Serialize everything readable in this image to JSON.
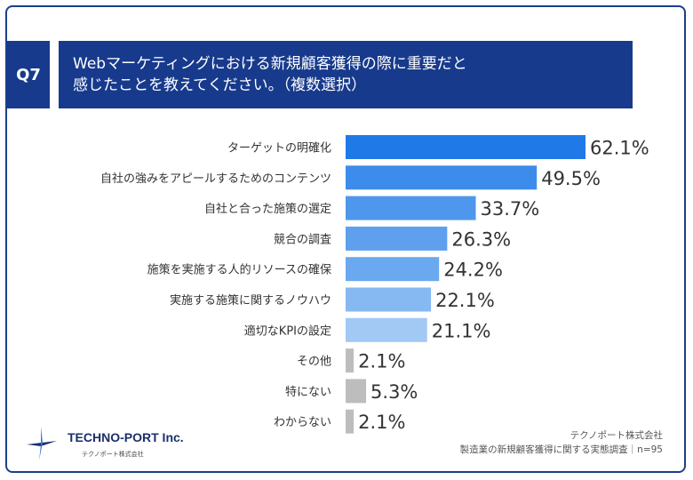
{
  "header": {
    "question_label": "Q7",
    "title_line1": "Webマーケティングにおける新規顧客獲得の際に重要だと",
    "title_line2": "感じたことを教えてください。（複数選択）"
  },
  "chart_data": {
    "type": "bar",
    "orientation": "horizontal",
    "categories": [
      "ターゲットの明確化",
      "自社の強みをアピールするためのコンテンツ",
      "自社と合った施策の選定",
      "競合の調査",
      "施策を実施する人的リソースの確保",
      "実施する施策に関するノウハウ",
      "適切なKPIの設定",
      "その他",
      "特にない",
      "わからない"
    ],
    "values": [
      62.1,
      49.5,
      33.7,
      26.3,
      24.2,
      22.1,
      21.1,
      2.1,
      5.3,
      2.1
    ],
    "value_labels": [
      "62.1%",
      "49.5%",
      "33.7%",
      "26.3%",
      "24.2%",
      "22.1%",
      "21.1%",
      "2.1%",
      "5.3%",
      "2.1%"
    ],
    "colors": [
      "#1f7ae8",
      "#3d8ceb",
      "#4f97ec",
      "#5ea0ed",
      "#6aa8ef",
      "#86b8f1",
      "#a2c8f4",
      "#bdbdbd",
      "#bdbdbd",
      "#bdbdbd"
    ],
    "unit": "%",
    "xlim": [
      0,
      62.1
    ]
  },
  "logo": {
    "name": "TECHNO-PORT Inc.",
    "sub": "テクノポート株式会社"
  },
  "source": {
    "line1": "テクノポート株式会社",
    "line2": "製造業の新規顧客獲得に関する実態調査｜n=95"
  }
}
